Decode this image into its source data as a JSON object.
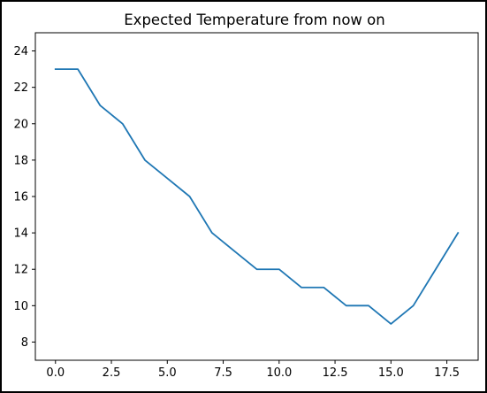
{
  "chart_data": {
    "type": "line",
    "title": "Expected Temperature from now on",
    "xlabel": "",
    "ylabel": "",
    "x": [
      0,
      1,
      2,
      3,
      4,
      5,
      6,
      7,
      8,
      9,
      10,
      11,
      12,
      13,
      14,
      15,
      16,
      17,
      18
    ],
    "series": [
      {
        "values": [
          23,
          23,
          21,
          20,
          18,
          17,
          16,
          14,
          13,
          12,
          12,
          11,
          11,
          10,
          10,
          9,
          10,
          12,
          14
        ],
        "color": "#1f77b4"
      }
    ],
    "xlim": [
      -0.9,
      18.9
    ],
    "ylim": [
      7,
      25
    ],
    "xticks": [
      0.0,
      2.5,
      5.0,
      7.5,
      10.0,
      12.5,
      15.0,
      17.5
    ],
    "xtick_labels": [
      "0.0",
      "2.5",
      "5.0",
      "7.5",
      "10.0",
      "12.5",
      "15.0",
      "17.5"
    ],
    "yticks": [
      8,
      10,
      12,
      14,
      16,
      18,
      20,
      22,
      24
    ],
    "ytick_labels": [
      "8",
      "10",
      "12",
      "14",
      "16",
      "18",
      "20",
      "22",
      "24"
    ],
    "grid": false,
    "legend": "none"
  }
}
